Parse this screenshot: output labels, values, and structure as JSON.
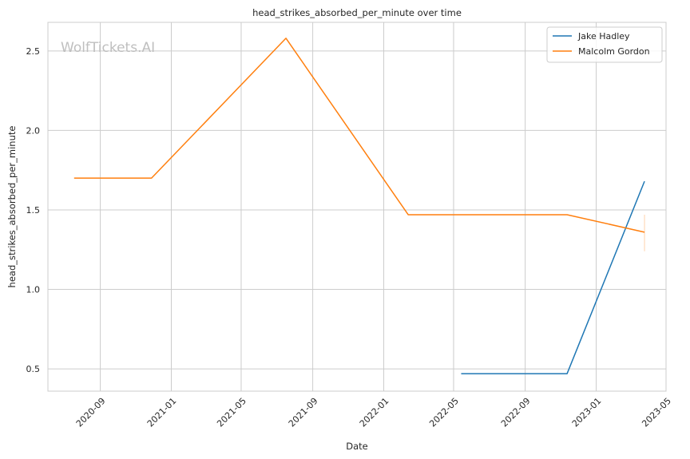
{
  "watermark": "WolfTickets.AI",
  "colors": {
    "background": "#ffffff",
    "grid": "#cccccc",
    "axes_edge": "#cccccc",
    "text": "#262626",
    "watermark": "#bfbfbf"
  },
  "chart_data": {
    "type": "line",
    "title": "head_strikes_absorbed_per_minute over time",
    "xlabel": "Date",
    "ylabel": "head_strikes_absorbed_per_minute",
    "x_axis_type": "date",
    "xlim": [
      "2020-06-03",
      "2023-05-01"
    ],
    "ylim": [
      0.36,
      2.68
    ],
    "x_ticks": [
      "2020-09",
      "2021-01",
      "2021-05",
      "2021-09",
      "2022-01",
      "2022-05",
      "2022-09",
      "2023-01",
      "2023-05"
    ],
    "y_ticks": [
      0.5,
      1.0,
      1.5,
      2.0,
      2.5
    ],
    "grid": true,
    "legend_position": "top-right",
    "series": [
      {
        "name": "Jake Hadley",
        "color": "#1f77b4",
        "points": [
          {
            "x": "2022-05-14",
            "y": 0.47
          },
          {
            "x": "2022-11-12",
            "y": 0.47
          },
          {
            "x": "2023-03-25",
            "y": 1.68
          }
        ]
      },
      {
        "name": "Malcolm Gordon",
        "color": "#ff7f0e",
        "points": [
          {
            "x": "2020-07-18",
            "y": 1.7
          },
          {
            "x": "2020-11-28",
            "y": 1.7
          },
          {
            "x": "2021-07-17",
            "y": 2.58
          },
          {
            "x": "2022-02-12",
            "y": 1.47
          },
          {
            "x": "2022-11-12",
            "y": 1.47
          },
          {
            "x": "2023-03-25",
            "y": 1.36
          }
        ],
        "error_bar": {
          "x": "2023-03-25",
          "low": 1.24,
          "high": 1.47
        }
      }
    ]
  }
}
